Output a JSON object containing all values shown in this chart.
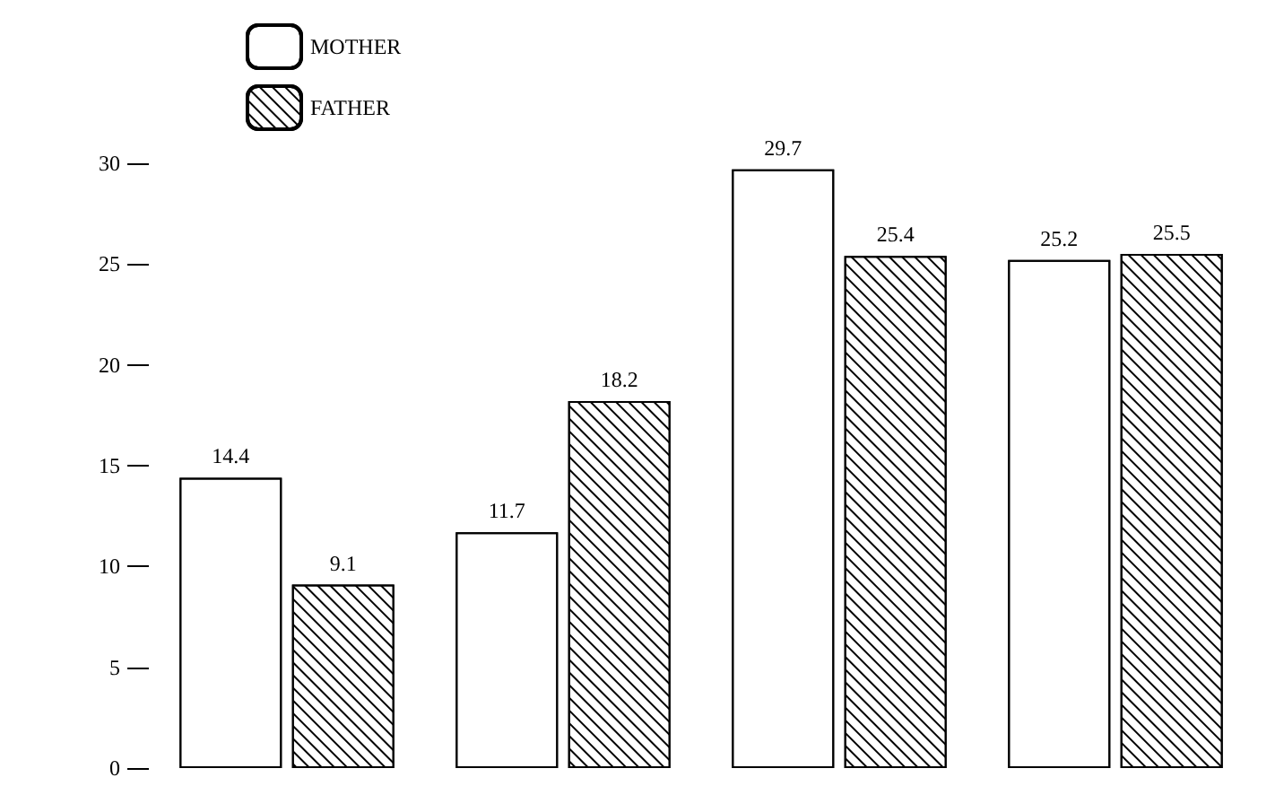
{
  "chart_data": {
    "type": "bar",
    "categories": [
      null,
      null,
      null,
      null
    ],
    "series": [
      {
        "name": "MOTHER",
        "color": "#ffffff",
        "values": [
          14.4,
          11.7,
          29.7,
          25.2
        ]
      },
      {
        "name": "FATHER",
        "color": "#ffffff",
        "values": [
          9.1,
          18.2,
          25.4,
          25.5
        ]
      }
    ],
    "ylim": [
      0,
      30
    ],
    "yticks": [
      0,
      5,
      10,
      15,
      20,
      25,
      30
    ],
    "grid": false,
    "legend": "top left",
    "data_labels": true
  }
}
